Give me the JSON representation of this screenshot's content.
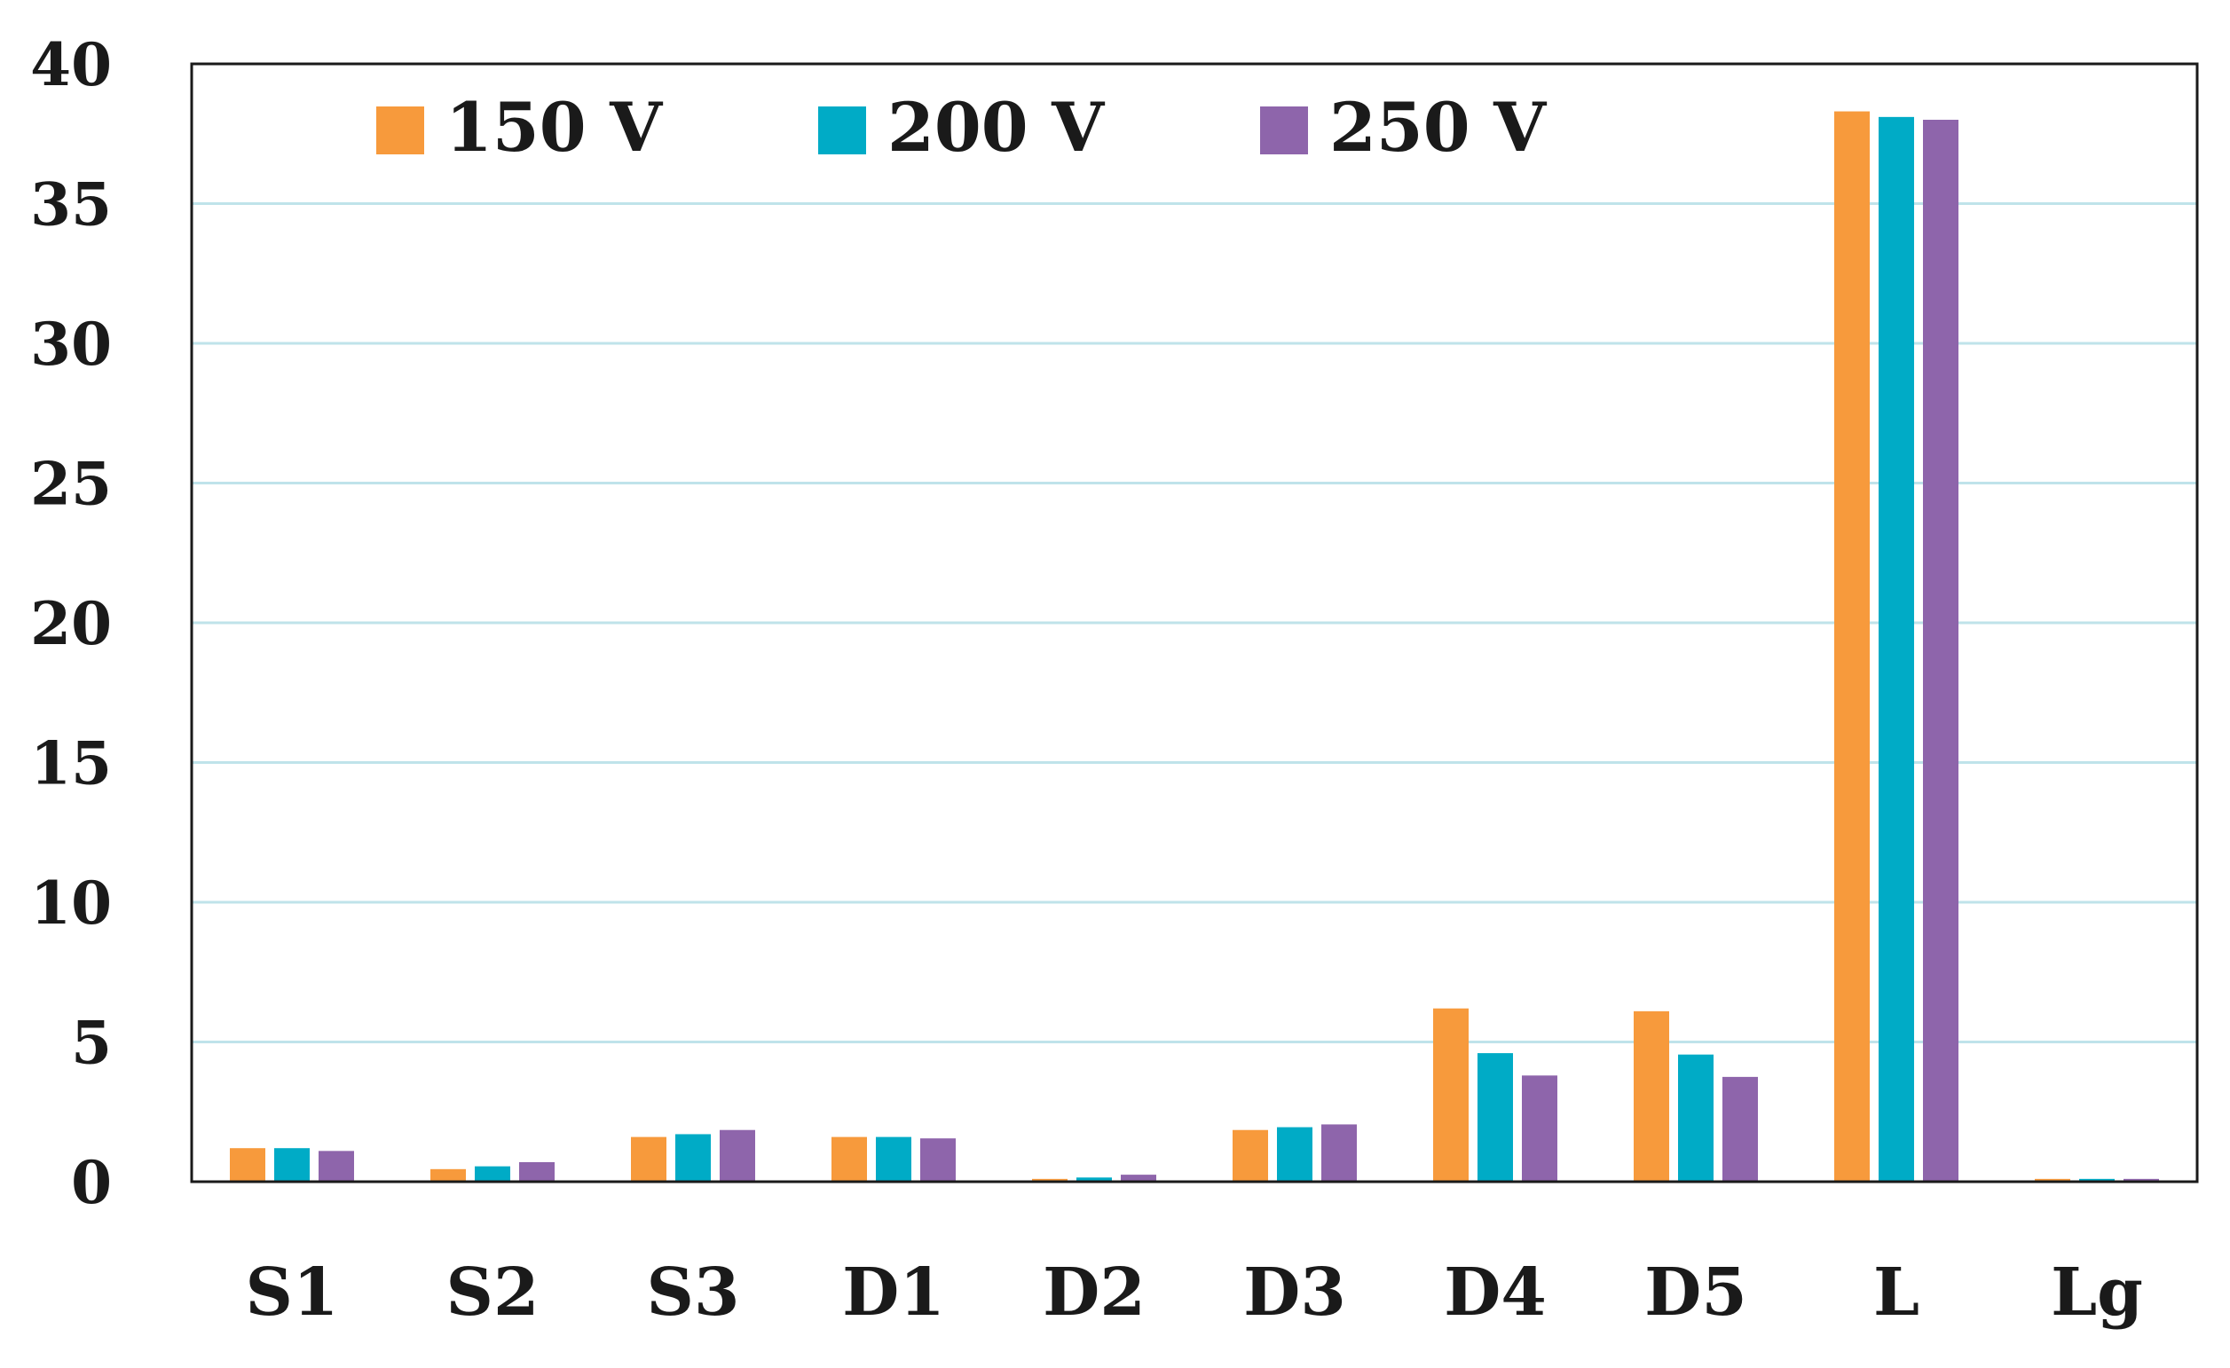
{
  "chart_data": {
    "type": "bar",
    "title": "",
    "xlabel": "",
    "ylabel": "",
    "categories": [
      "S1",
      "S2",
      "S3",
      "D1",
      "D2",
      "D3",
      "D4",
      "D5",
      "L",
      "Lg"
    ],
    "ylim": [
      0,
      40
    ],
    "yticks": [
      0,
      5,
      10,
      15,
      20,
      25,
      30,
      35,
      40
    ],
    "grid": true,
    "legend_position": "top",
    "series": [
      {
        "name": "150 V",
        "color": "#F79A3C",
        "values": [
          1.2,
          0.45,
          1.6,
          1.6,
          0.1,
          1.85,
          6.2,
          6.1,
          38.3,
          0.1
        ]
      },
      {
        "name": "200 V",
        "color": "#00ABC6",
        "values": [
          1.2,
          0.55,
          1.7,
          1.6,
          0.15,
          1.95,
          4.6,
          4.55,
          38.1,
          0.1
        ]
      },
      {
        "name": "250 V",
        "color": "#8E65AB",
        "values": [
          1.1,
          0.7,
          1.85,
          1.55,
          0.25,
          2.05,
          3.8,
          3.75,
          38.0,
          0.1
        ]
      }
    ],
    "gridline_color": "#BFE3EA",
    "axis_color": "#1a1a1a"
  }
}
